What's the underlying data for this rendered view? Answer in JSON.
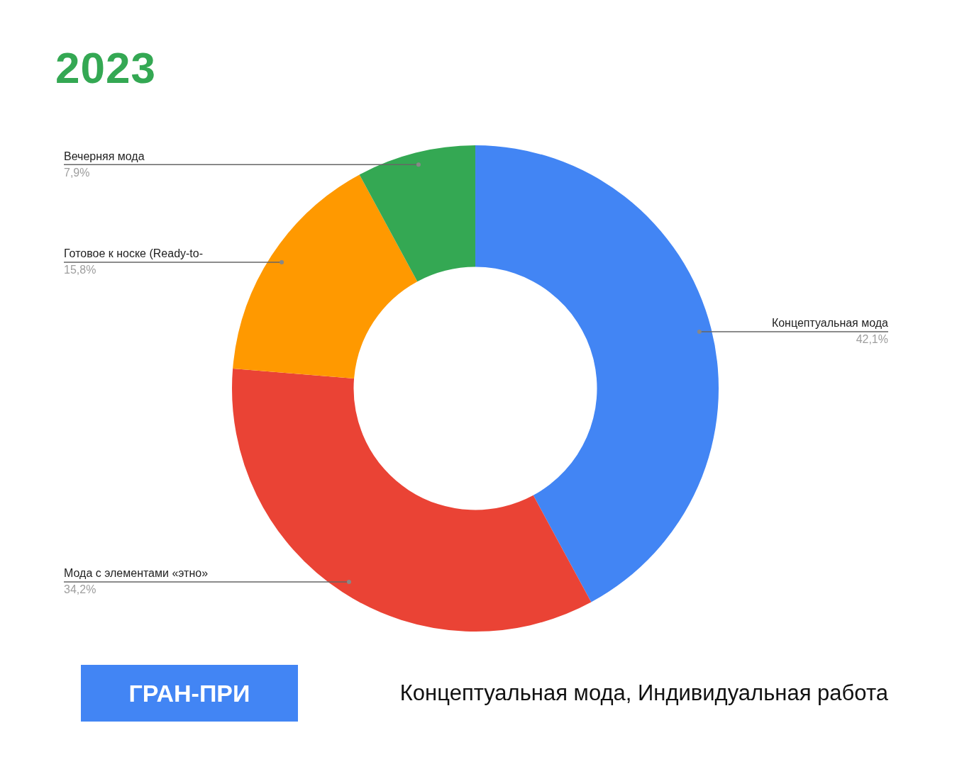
{
  "chart_data": {
    "type": "donut",
    "title": "2023",
    "categories": [
      "Концептуальная мода",
      "Мода с элементами «этно»",
      "Готовое к носке (Ready-to-",
      "Вечерняя мода"
    ],
    "values": [
      42.1,
      34.2,
      15.8,
      7.9
    ],
    "colors": [
      "#4285f4",
      "#ea4335",
      "#ff9900",
      "#34a853"
    ],
    "value_labels": [
      "42,1%",
      "34,2%",
      "15,8%",
      "7,9%"
    ],
    "legend": false,
    "annotations": [
      "ГРАН-ПРИ",
      "Концептуальная мода, Индивидуальная работа"
    ]
  }
}
